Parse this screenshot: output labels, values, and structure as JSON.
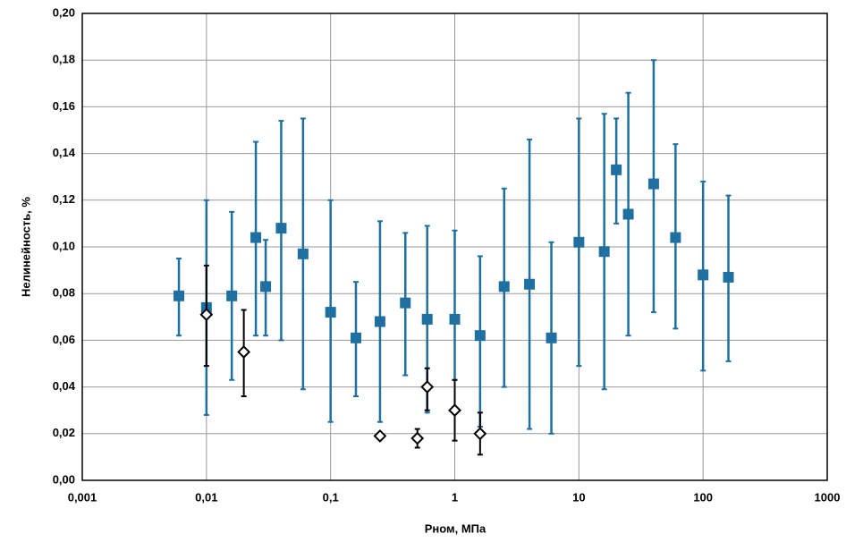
{
  "chart_data": {
    "type": "scatter",
    "x_label": "Рном, МПа",
    "y_label": "Нелинейность, %",
    "x_log": true,
    "grid": true,
    "xlim": [
      0.001,
      1000
    ],
    "xticks": [
      {
        "value": 0.001,
        "label": "0,001"
      },
      {
        "value": 0.01,
        "label": "0,01"
      },
      {
        "value": 0.1,
        "label": "0,1"
      },
      1,
      10,
      100,
      1000
    ],
    "ylim": [
      0,
      0.2
    ],
    "yticks": [
      {
        "value": 0,
        "label": "0,00"
      },
      {
        "value": 0.02,
        "label": "0,02"
      },
      {
        "value": 0.04,
        "label": "0,04"
      },
      {
        "value": 0.06,
        "label": "0,06"
      },
      {
        "value": 0.08,
        "label": "0,08"
      },
      {
        "value": 0.1,
        "label": "0,10"
      },
      {
        "value": 0.12,
        "label": "0,12"
      },
      {
        "value": 0.14,
        "label": "0,14"
      },
      {
        "value": 0.16,
        "label": "0,16"
      },
      {
        "value": 0.18,
        "label": "0,18"
      },
      {
        "value": 0.2,
        "label": "0,20"
      }
    ],
    "series": [
      {
        "color": "#1f6fa0",
        "marker": "square",
        "x": [
          0.006,
          0.01,
          0.016,
          0.025,
          0.03,
          0.04,
          0.06,
          0.1,
          0.16,
          0.25,
          0.4,
          0.6,
          1,
          1.6,
          2.5,
          4,
          6,
          10,
          16,
          20,
          25,
          40,
          60,
          100,
          160
        ],
        "values": [
          0.079,
          0.074,
          0.079,
          0.104,
          0.083,
          0.108,
          0.097,
          0.072,
          0.061,
          0.068,
          0.076,
          0.069,
          0.069,
          0.062,
          0.083,
          0.084,
          0.061,
          0.102,
          0.098,
          0.133,
          0.114,
          0.127,
          0.104,
          0.088,
          0.087
        ],
        "error_minus": [
          0.017,
          0.046,
          0.036,
          0.042,
          0.021,
          0.048,
          0.058,
          0.047,
          0.025,
          0.043,
          0.031,
          0.04,
          0.026,
          0.039,
          0.043,
          0.062,
          0.041,
          0.053,
          0.059,
          0.023,
          0.052,
          0.055,
          0.039,
          0.041,
          0.036
        ],
        "error_plus": [
          0.016,
          0.046,
          0.036,
          0.041,
          0.02,
          0.046,
          0.058,
          0.048,
          0.024,
          0.043,
          0.03,
          0.04,
          0.038,
          0.034,
          0.042,
          0.062,
          0.041,
          0.053,
          0.059,
          0.022,
          0.052,
          0.053,
          0.04,
          0.04,
          0.035
        ]
      },
      {
        "color": "#000000",
        "marker": "diamond",
        "x": [
          0.01,
          0.02,
          0.25,
          0.5,
          0.6,
          1,
          1.6
        ],
        "values": [
          0.071,
          0.055,
          0.019,
          0.018,
          0.04,
          0.03,
          0.02
        ],
        "error_minus": [
          0.022,
          0.019,
          null,
          0.004,
          0.01,
          0.013,
          0.009
        ],
        "error_plus": [
          0.021,
          0.018,
          null,
          0.004,
          0.008,
          0.013,
          0.009
        ]
      }
    ]
  }
}
